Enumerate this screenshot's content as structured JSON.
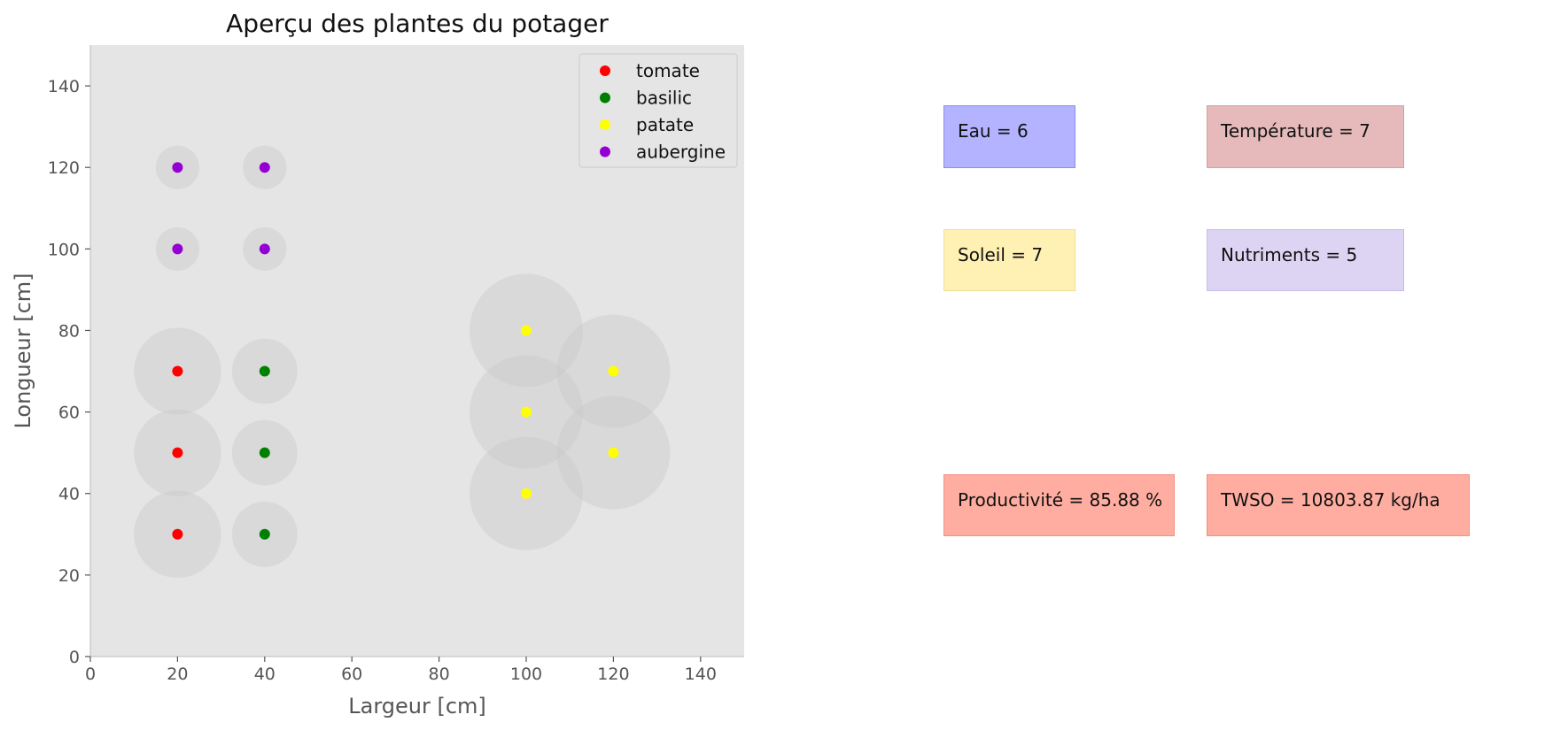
{
  "chart_data": {
    "type": "scatter",
    "title": "Aperçu des plantes du potager",
    "xlabel": "Largeur [cm]",
    "ylabel": "Longueur [cm]",
    "xlim": [
      0,
      150
    ],
    "ylim": [
      0,
      150
    ],
    "xticks": [
      0,
      20,
      40,
      60,
      80,
      100,
      120,
      140
    ],
    "yticks": [
      0,
      20,
      40,
      60,
      80,
      100,
      120,
      140
    ],
    "grid": false,
    "legend_position": "top-right",
    "series": [
      {
        "name": "tomate",
        "color": "#ff0000",
        "points": [
          {
            "x": 20,
            "y": 30
          },
          {
            "x": 20,
            "y": 50
          },
          {
            "x": 20,
            "y": 70
          }
        ],
        "spacing_radius": 10
      },
      {
        "name": "basilic",
        "color": "#008000",
        "points": [
          {
            "x": 40,
            "y": 30
          },
          {
            "x": 40,
            "y": 50
          },
          {
            "x": 40,
            "y": 70
          }
        ],
        "spacing_radius": 7.5
      },
      {
        "name": "patate",
        "color": "#ffff00",
        "points": [
          {
            "x": 100,
            "y": 40
          },
          {
            "x": 100,
            "y": 60
          },
          {
            "x": 100,
            "y": 80
          },
          {
            "x": 120,
            "y": 50
          },
          {
            "x": 120,
            "y": 70
          }
        ],
        "spacing_radius": 13
      },
      {
        "name": "aubergine",
        "color": "#9400d3",
        "points": [
          {
            "x": 20,
            "y": 100
          },
          {
            "x": 20,
            "y": 120
          },
          {
            "x": 40,
            "y": 100
          },
          {
            "x": 40,
            "y": 120
          }
        ],
        "spacing_radius": 5
      }
    ]
  },
  "info_boxes": [
    {
      "id": "eau",
      "text": "Eau = 6",
      "bg": "#b3b3ff",
      "border": "#8c8cf2"
    },
    {
      "id": "temperature",
      "text": "Température = 7",
      "bg": "#e6baba",
      "border": "#d49f9f"
    },
    {
      "id": "soleil",
      "text": "Soleil = 7",
      "bg": "#fff0b3",
      "border": "#f0dea0"
    },
    {
      "id": "nutriments",
      "text": "Nutriments = 5",
      "bg": "#ddd3f3",
      "border": "#c8bbea"
    },
    {
      "id": "productivite",
      "text": "Productivité = 85.88 %",
      "bg": "#ffada1",
      "border": "#f29080"
    },
    {
      "id": "twso",
      "text": "TWSO = 10803.87 kg/ha",
      "bg": "#ffada1",
      "border": "#f29080"
    }
  ]
}
